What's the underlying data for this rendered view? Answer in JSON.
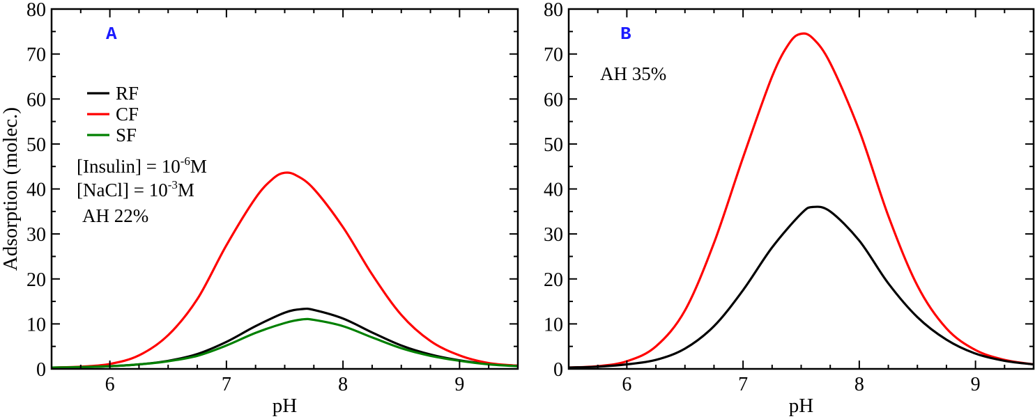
{
  "chart_data": [
    {
      "type": "line",
      "panel_label": "A",
      "xlabel": "pH",
      "ylabel": "Adsorption (molec.)",
      "xlim": [
        5.5,
        9.5
      ],
      "ylim": [
        0,
        80
      ],
      "xticks": [
        "6",
        "7",
        "8",
        "9"
      ],
      "yticks": [
        "0",
        "10",
        "20",
        "30",
        "40",
        "50",
        "60",
        "70",
        "80"
      ],
      "legend": {
        "placement": "upper-left"
      },
      "annotations": [
        {
          "prefix": "[Insulin] = 10",
          "sup": "-6",
          "suffix": "M"
        },
        {
          "prefix": "[NaCl] = 10",
          "sup": "-3",
          "suffix": "M"
        },
        {
          "prefix": "AH 22%",
          "sup": "",
          "suffix": ""
        }
      ],
      "series": [
        {
          "name": "RF",
          "color": "#000000",
          "x": [
            5.5,
            5.75,
            6.0,
            6.25,
            6.5,
            6.75,
            7.0,
            7.25,
            7.5,
            7.65,
            7.75,
            8.0,
            8.25,
            8.5,
            8.75,
            9.0,
            9.25,
            9.5
          ],
          "y": [
            0.3,
            0.4,
            0.6,
            1.0,
            1.8,
            3.3,
            6.0,
            9.5,
            12.5,
            13.3,
            13.1,
            11.2,
            8.1,
            5.2,
            3.2,
            1.9,
            1.1,
            0.7
          ]
        },
        {
          "name": "CF",
          "color": "#ff0000",
          "x": [
            5.5,
            5.75,
            6.0,
            6.25,
            6.5,
            6.75,
            7.0,
            7.25,
            7.4,
            7.5,
            7.6,
            7.75,
            8.0,
            8.25,
            8.5,
            8.75,
            9.0,
            9.25,
            9.5
          ],
          "y": [
            0.3,
            0.5,
            1.1,
            3.0,
            7.5,
            15.5,
            27.5,
            38.0,
            42.3,
            43.6,
            43.0,
            40.0,
            31.5,
            21.0,
            12.0,
            6.2,
            3.0,
            1.3,
            0.7
          ]
        },
        {
          "name": "SF",
          "color": "#008000",
          "x": [
            5.5,
            5.75,
            6.0,
            6.25,
            6.5,
            6.75,
            7.0,
            7.25,
            7.5,
            7.65,
            7.75,
            8.0,
            8.25,
            8.5,
            8.75,
            9.0,
            9.25,
            9.5
          ],
          "y": [
            0.3,
            0.4,
            0.6,
            1.0,
            1.7,
            2.9,
            5.2,
            8.0,
            10.2,
            11.0,
            10.9,
            9.5,
            7.0,
            4.6,
            2.9,
            1.8,
            1.0,
            0.6
          ]
        }
      ]
    },
    {
      "type": "line",
      "panel_label": "B",
      "xlabel": "pH",
      "ylabel": "",
      "xlim": [
        5.5,
        9.5
      ],
      "ylim": [
        0,
        80
      ],
      "xticks": [
        "6",
        "7",
        "8",
        "9"
      ],
      "yticks": [
        "0",
        "10",
        "20",
        "30",
        "40",
        "50",
        "60",
        "70",
        "80"
      ],
      "annotations": [
        {
          "prefix": "AH 35%",
          "sup": "",
          "suffix": ""
        }
      ],
      "series": [
        {
          "color": "#ff0000",
          "x": [
            5.5,
            5.75,
            6.0,
            6.25,
            6.5,
            6.75,
            7.0,
            7.25,
            7.4,
            7.5,
            7.6,
            7.75,
            8.0,
            8.25,
            8.5,
            8.75,
            9.0,
            9.25,
            9.5
          ],
          "y": [
            0.3,
            0.6,
            1.7,
            5.0,
            13.0,
            28.0,
            47.0,
            65.0,
            72.5,
            74.5,
            73.5,
            68.0,
            53.0,
            34.0,
            18.5,
            9.0,
            4.2,
            2.0,
            1.0
          ]
        },
        {
          "color": "#000000",
          "x": [
            5.5,
            5.75,
            6.0,
            6.25,
            6.5,
            6.75,
            7.0,
            7.25,
            7.5,
            7.6,
            7.75,
            8.0,
            8.25,
            8.5,
            8.75,
            9.0,
            9.25,
            9.5
          ],
          "y": [
            0.3,
            0.5,
            1.0,
            2.0,
            4.5,
            9.5,
            17.5,
            27.0,
            34.5,
            36.0,
            35.0,
            28.5,
            19.0,
            11.5,
            6.5,
            3.4,
            1.8,
            1.0
          ]
        }
      ]
    }
  ]
}
